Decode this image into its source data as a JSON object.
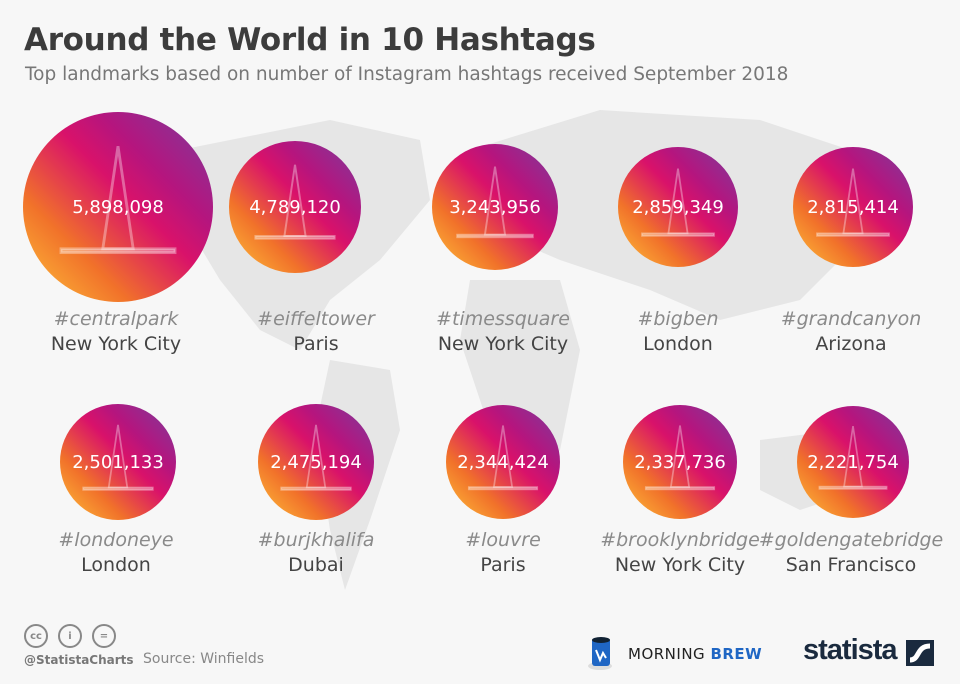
{
  "title": "Around the World in 10 Hashtags",
  "subtitle": "Top landmarks based on number of Instagram hashtags received September 2018",
  "chart_data": {
    "type": "bubble",
    "title": "Around the World in 10 Hashtags",
    "subtitle": "Top landmarks based on number of Instagram hashtags received September 2018",
    "categories": [
      "#centralpark",
      "#eiffeltower",
      "#timessquare",
      "#bigben",
      "#grandcanyon",
      "#londoneye",
      "#burjkhalifa",
      "#louvre",
      "#brooklynbridge",
      "#goldengatebridge"
    ],
    "locations": [
      "New York City",
      "Paris",
      "New York City",
      "London",
      "Arizona",
      "London",
      "Dubai",
      "Paris",
      "New York City",
      "San Francisco"
    ],
    "values": [
      5898098,
      4789120,
      3243956,
      2859349,
      2815414,
      2501133,
      2475194,
      2344424,
      2337736,
      2221754
    ],
    "value_labels": [
      "5,898,098",
      "4,789,120",
      "3,243,956",
      "2,859,349",
      "2,815,414",
      "2,501,133",
      "2,475,194",
      "2,344,424",
      "2,337,736",
      "2,221,754"
    ],
    "icons": [
      "trees-icon",
      "eiffel-tower-icon",
      "skyscrapers-icon",
      "big-ben-icon",
      "canyon-icon",
      "ferris-wheel-icon",
      "burj-khalifa-icon",
      "louvre-pyramid-icon",
      "brooklyn-bridge-icon",
      "golden-gate-bridge-icon"
    ],
    "gradient_colors": [
      "#7a3d9e",
      "#d9126a",
      "#f1722a",
      "#ffc43a"
    ]
  },
  "footer": {
    "license_icons": [
      "cc-icon",
      "by-icon",
      "nd-icon"
    ],
    "license_glyphs": [
      "cc",
      "i",
      "="
    ],
    "handle": "@StatistaCharts",
    "source": "Source: Winfields",
    "partner_word1": "MORNING",
    "partner_word2": "BREW",
    "brand": "statista"
  }
}
